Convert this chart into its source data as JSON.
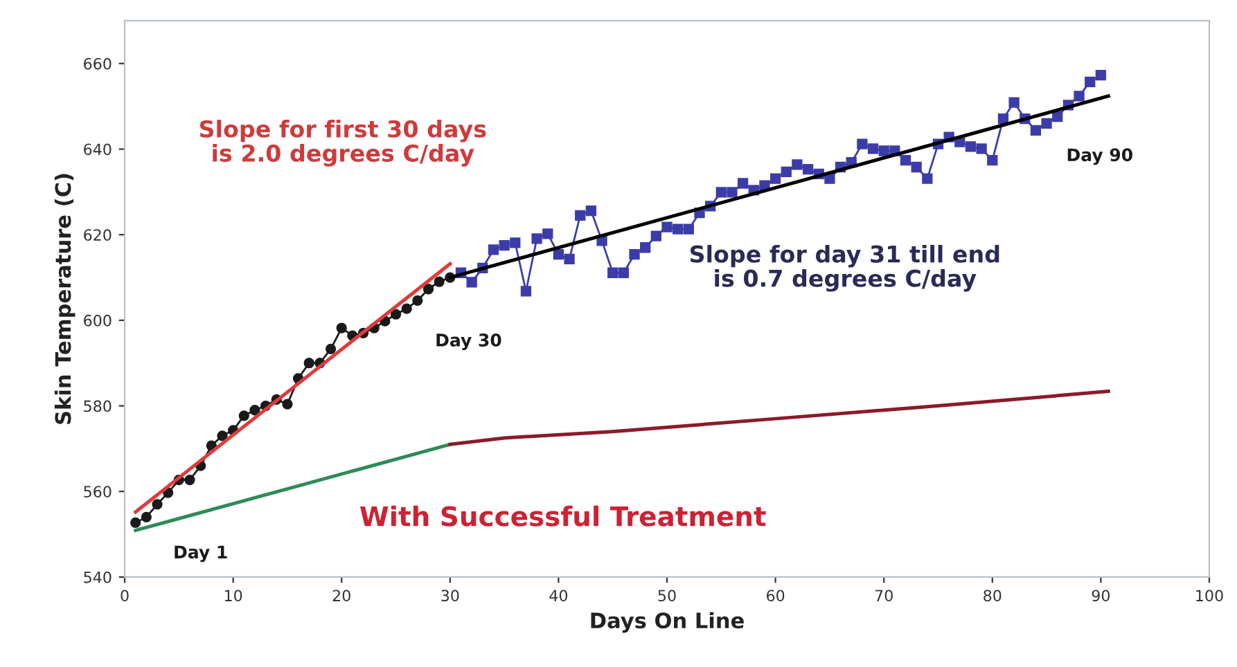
{
  "chart_data": {
    "type": "line",
    "xlabel": "Days On Line",
    "ylabel": "Skin Temperature (C)",
    "xlim": [
      0,
      100
    ],
    "xticks": [
      0,
      10,
      20,
      30,
      40,
      50,
      60,
      70,
      80,
      90,
      100
    ],
    "ylim": [
      540,
      670
    ],
    "yticks": [
      540,
      560,
      580,
      600,
      620,
      640,
      660
    ],
    "grid": false,
    "series": [
      {
        "color": "#1a1a1a",
        "marker": "circle",
        "x": [
          1,
          2,
          3,
          4,
          5,
          6,
          7,
          8,
          9,
          10,
          11,
          12,
          13,
          14,
          15,
          16,
          17,
          18,
          19,
          20,
          21,
          22,
          23,
          24,
          25,
          26,
          27,
          28,
          29,
          30
        ],
        "values": [
          552.7,
          554,
          557,
          559.7,
          562.7,
          562.7,
          566,
          570.7,
          573,
          574.3,
          577.7,
          579,
          580,
          581.5,
          580.4,
          586.4,
          590,
          590,
          593.3,
          598.2,
          596.4,
          597,
          598.2,
          599.8,
          601.4,
          602.7,
          604.6,
          607.3,
          609,
          610
        ]
      },
      {
        "color": "#3c3ca8",
        "marker": "square",
        "x": [
          31,
          32,
          33,
          34,
          35,
          36,
          37,
          38,
          39,
          40,
          41,
          42,
          43,
          44,
          45,
          46,
          47,
          48,
          49,
          50,
          51,
          52,
          53,
          54,
          55,
          56,
          57,
          58,
          59,
          60,
          61,
          62,
          63,
          64,
          65,
          66,
          67,
          68,
          69,
          70,
          71,
          72,
          73,
          74,
          75,
          76,
          77,
          78,
          79,
          80,
          81,
          82,
          83,
          84,
          85,
          86,
          87,
          88,
          89,
          90
        ],
        "values": [
          611.1,
          608.9,
          612.2,
          616.5,
          617.5,
          618.1,
          606.8,
          619.1,
          620.2,
          615.4,
          614.3,
          624.5,
          625.6,
          618.6,
          611.1,
          611.1,
          615.4,
          617,
          619.7,
          621.8,
          621.3,
          621.3,
          625.1,
          626.7,
          629.9,
          629.9,
          632,
          630.4,
          631.5,
          633.1,
          634.7,
          636.4,
          635.3,
          634.2,
          633.1,
          635.8,
          636.9,
          641.2,
          640.1,
          639.6,
          639.6,
          637.4,
          635.8,
          633.1,
          641.2,
          642.8,
          641.7,
          640.6,
          640.1,
          637.4,
          647.1,
          650.9,
          647.1,
          644.4,
          646,
          647.6,
          650.3,
          652.4,
          655.7,
          657.3
        ]
      },
      {
        "color": "#e03a3a",
        "x": [
          1,
          30
        ],
        "values": [
          555.2,
          613.2
        ]
      },
      {
        "color": "#000000",
        "x": [
          30,
          90.7
        ],
        "values": [
          610,
          652.4
        ]
      },
      {
        "color": "#2e8b57",
        "x": [
          1,
          30
        ],
        "values": [
          550.9,
          571
        ]
      },
      {
        "color": "#8b1a2a",
        "x": [
          30,
          35,
          45,
          60,
          75,
          90.7
        ],
        "values": [
          571,
          572.5,
          574,
          577,
          580,
          583.4
        ]
      }
    ],
    "annotations": [
      "Slope for first 30 days\nis 2.0 degrees C/day",
      "Slope for day 31 till end\nis 0.7 degrees C/day",
      "With Successful Treatment",
      "Day 1",
      "Day 30",
      "Day 90"
    ]
  }
}
